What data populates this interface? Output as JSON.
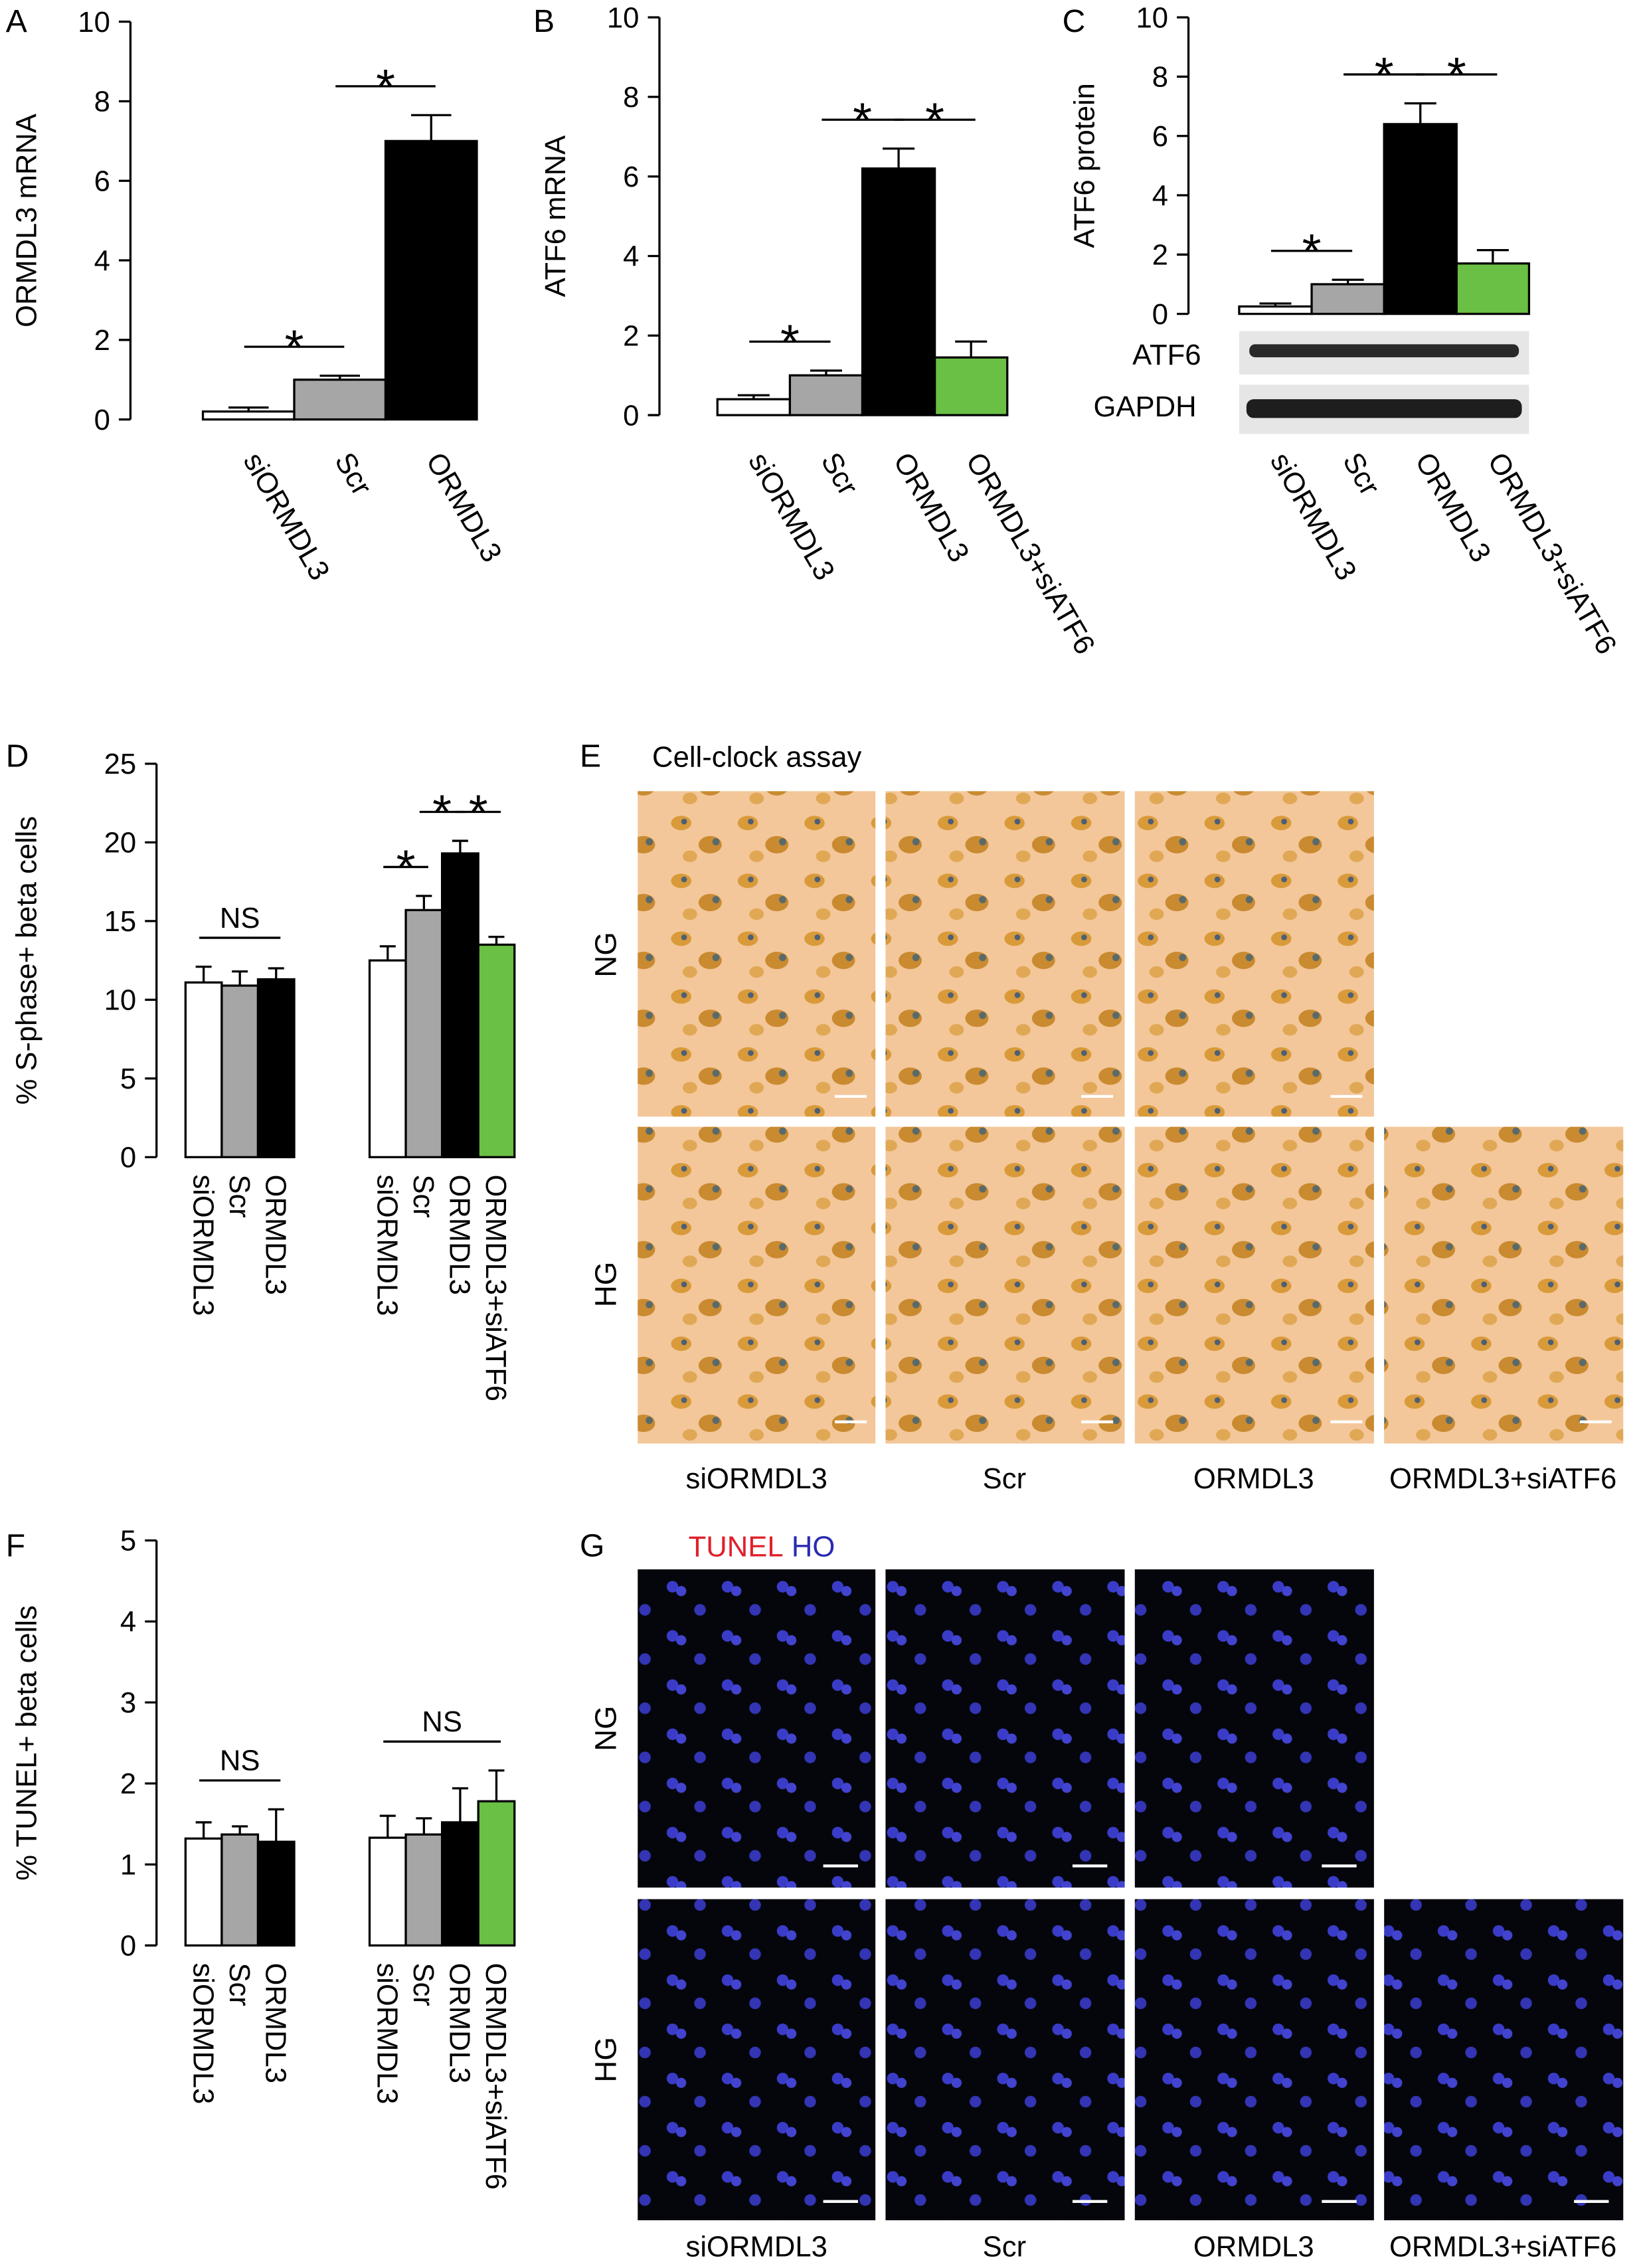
{
  "panel_labels": [
    "A",
    "B",
    "C",
    "D",
    "E",
    "F",
    "G"
  ],
  "chart_data": [
    {
      "type": "bar",
      "ylabel": "ORMDL3 mRNA",
      "ylim": [
        0,
        10
      ],
      "yticks": [
        0,
        2,
        4,
        6,
        8,
        10
      ],
      "groups": [
        {
          "categories": [
            "siORMDL3",
            "Scr",
            "ORMDL3"
          ],
          "values": [
            0.2,
            1.0,
            7.0
          ],
          "errors": [
            0.1,
            0.1,
            0.65
          ],
          "colors": [
            "#ffffff",
            "#a6a6a6",
            "#000000"
          ]
        }
      ],
      "annotations": [
        {
          "group": 0,
          "between": [
            0,
            1
          ],
          "text": "*"
        },
        {
          "group": 0,
          "between": [
            1,
            2
          ],
          "text": "*"
        }
      ]
    },
    {
      "type": "bar",
      "ylabel": "ATF6 mRNA",
      "ylim": [
        0,
        10
      ],
      "yticks": [
        0,
        2,
        4,
        6,
        8,
        10
      ],
      "groups": [
        {
          "categories": [
            "siORMDL3",
            "Scr",
            "ORMDL3",
            "ORMDL3+siATF6"
          ],
          "values": [
            0.4,
            1.0,
            6.2,
            1.45
          ],
          "errors": [
            0.1,
            0.12,
            0.5,
            0.4
          ],
          "colors": [
            "#ffffff",
            "#a6a6a6",
            "#000000",
            "#6abf45"
          ]
        }
      ],
      "annotations": [
        {
          "group": 0,
          "between": [
            0,
            1
          ],
          "text": "*"
        },
        {
          "group": 0,
          "between": [
            1,
            2
          ],
          "text": "*"
        },
        {
          "group": 0,
          "between": [
            2,
            3
          ],
          "text": "*"
        }
      ]
    },
    {
      "type": "bar",
      "ylabel": "ATF6 protein",
      "ylim": [
        0,
        10
      ],
      "yticks": [
        0,
        2,
        4,
        6,
        8,
        10
      ],
      "groups": [
        {
          "categories": [
            "siORMDL3",
            "Scr",
            "ORMDL3",
            "ORMDL3+siATF6"
          ],
          "values": [
            0.25,
            1.0,
            6.4,
            1.7
          ],
          "errors": [
            0.1,
            0.15,
            0.7,
            0.45
          ],
          "colors": [
            "#ffffff",
            "#a6a6a6",
            "#000000",
            "#6abf45"
          ]
        }
      ],
      "annotations": [
        {
          "group": 0,
          "between": [
            0,
            1
          ],
          "text": "*"
        },
        {
          "group": 0,
          "between": [
            1,
            2
          ],
          "text": "*"
        },
        {
          "group": 0,
          "between": [
            2,
            3
          ],
          "text": "*"
        }
      ],
      "blot_labels": [
        "ATF6",
        "GAPDH"
      ]
    },
    {
      "type": "bar",
      "ylabel": "% S-phase+ beta cells",
      "ylim": [
        0,
        25
      ],
      "yticks": [
        0,
        5,
        10,
        15,
        20,
        25
      ],
      "groups": [
        {
          "categories": [
            "siORMDL3",
            "Scr",
            "ORMDL3"
          ],
          "values": [
            11.1,
            10.9,
            11.3
          ],
          "errors": [
            1.0,
            0.9,
            0.7
          ],
          "colors": [
            "#ffffff",
            "#a6a6a6",
            "#000000"
          ]
        },
        {
          "categories": [
            "siORMDL3",
            "Scr",
            "ORMDL3",
            "ORMDL3+siATF6"
          ],
          "values": [
            12.5,
            15.7,
            19.3,
            13.5
          ],
          "errors": [
            0.9,
            0.9,
            0.8,
            0.5
          ],
          "colors": [
            "#ffffff",
            "#a6a6a6",
            "#000000",
            "#6abf45"
          ]
        }
      ],
      "annotations": [
        {
          "group": 0,
          "between": [
            0,
            2
          ],
          "text": "NS"
        },
        {
          "group": 1,
          "between": [
            0,
            1
          ],
          "text": "*"
        },
        {
          "group": 1,
          "between": [
            1,
            2
          ],
          "text": "*"
        },
        {
          "group": 1,
          "between": [
            2,
            3
          ],
          "text": "*"
        }
      ]
    },
    {
      "type": "bar",
      "ylabel": "% TUNEL+ beta cells",
      "ylim": [
        0,
        5
      ],
      "yticks": [
        0,
        1,
        2,
        3,
        4,
        5
      ],
      "groups": [
        {
          "categories": [
            "siORMDL3",
            "Scr",
            "ORMDL3"
          ],
          "values": [
            1.32,
            1.37,
            1.28
          ],
          "errors": [
            0.2,
            0.1,
            0.4
          ],
          "colors": [
            "#ffffff",
            "#a6a6a6",
            "#000000"
          ]
        },
        {
          "categories": [
            "siORMDL3",
            "Scr",
            "ORMDL3",
            "ORMDL3+siATF6"
          ],
          "values": [
            1.33,
            1.37,
            1.52,
            1.78
          ],
          "errors": [
            0.27,
            0.2,
            0.42,
            0.38
          ],
          "colors": [
            "#ffffff",
            "#a6a6a6",
            "#000000",
            "#6abf45"
          ]
        }
      ],
      "annotations": [
        {
          "group": 0,
          "between": [
            0,
            2
          ],
          "text": "NS"
        },
        {
          "group": 1,
          "between": [
            0,
            3
          ],
          "text": "NS"
        }
      ]
    }
  ],
  "image_panels": [
    {
      "title": "Cell-clock assay",
      "rows": [
        "NG",
        "HG"
      ],
      "columns": [
        "siORMDL3",
        "Scr",
        "ORMDL3",
        "ORMDL3+siATF6"
      ]
    },
    {
      "title_parts": [
        "TUNEL",
        "HO"
      ],
      "rows": [
        "NG",
        "HG"
      ],
      "columns": [
        "siORMDL3",
        "Scr",
        "ORMDL3",
        "ORMDL3+siATF6"
      ]
    }
  ]
}
